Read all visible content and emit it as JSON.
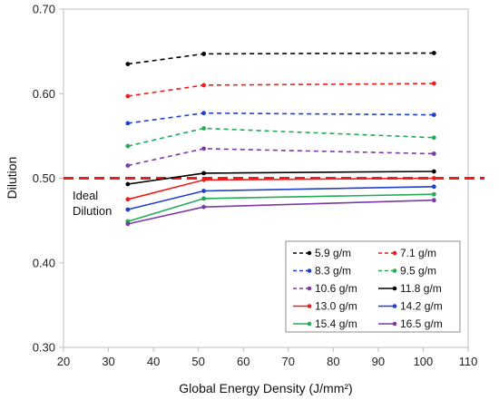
{
  "chart_data": {
    "type": "line",
    "xlabel": "Global Energy Density (J/mm²)",
    "ylabel": "Dilution",
    "xlim": [
      20,
      110
    ],
    "ylim": [
      0.3,
      0.7
    ],
    "x_ticks": [
      20,
      30,
      40,
      50,
      60,
      70,
      80,
      90,
      100,
      110
    ],
    "y_ticks": [
      0.3,
      0.4,
      0.5,
      0.6,
      0.7
    ],
    "x_tick_labels": [
      "20",
      "30",
      "40",
      "50",
      "60",
      "70",
      "80",
      "90",
      "100",
      "110"
    ],
    "y_tick_labels": [
      "0.30",
      "0.40",
      "0.50",
      "0.60",
      "0.70"
    ],
    "grid": false,
    "legend_position": "bottom-right",
    "reference_line": {
      "y": 0.5,
      "color": "#ee1c1c",
      "style": "dashed",
      "label_lines": [
        "Ideal",
        "Dilution"
      ]
    },
    "x": [
      34.3,
      51.2,
      102.4
    ],
    "series": [
      {
        "name": "5.9 g/m",
        "values": [
          0.635,
          0.647,
          0.648
        ],
        "color": "#000000",
        "dashed": true
      },
      {
        "name": "7.1 g/m",
        "values": [
          0.597,
          0.61,
          0.612
        ],
        "color": "#ee1c1c",
        "dashed": true
      },
      {
        "name": "8.3 g/m",
        "values": [
          0.565,
          0.577,
          0.575
        ],
        "color": "#1f3fcf",
        "dashed": true
      },
      {
        "name": "9.5 g/m",
        "values": [
          0.538,
          0.559,
          0.548
        ],
        "color": "#22aa55",
        "dashed": true
      },
      {
        "name": "10.6 g/m",
        "values": [
          0.515,
          0.535,
          0.529
        ],
        "color": "#7a3aa8",
        "dashed": true
      },
      {
        "name": "11.8 g/m",
        "values": [
          0.493,
          0.506,
          0.508
        ],
        "color": "#000000",
        "dashed": false
      },
      {
        "name": "13.0 g/m",
        "values": [
          0.475,
          0.498,
          0.5
        ],
        "color": "#ee1c1c",
        "dashed": false
      },
      {
        "name": "14.2 g/m",
        "values": [
          0.463,
          0.485,
          0.49
        ],
        "color": "#1f3fcf",
        "dashed": false
      },
      {
        "name": "15.4 g/m",
        "values": [
          0.449,
          0.476,
          0.481
        ],
        "color": "#22aa55",
        "dashed": false
      },
      {
        "name": "16.5 g/m",
        "values": [
          0.446,
          0.466,
          0.474
        ],
        "color": "#7a3aa8",
        "dashed": false
      }
    ]
  }
}
